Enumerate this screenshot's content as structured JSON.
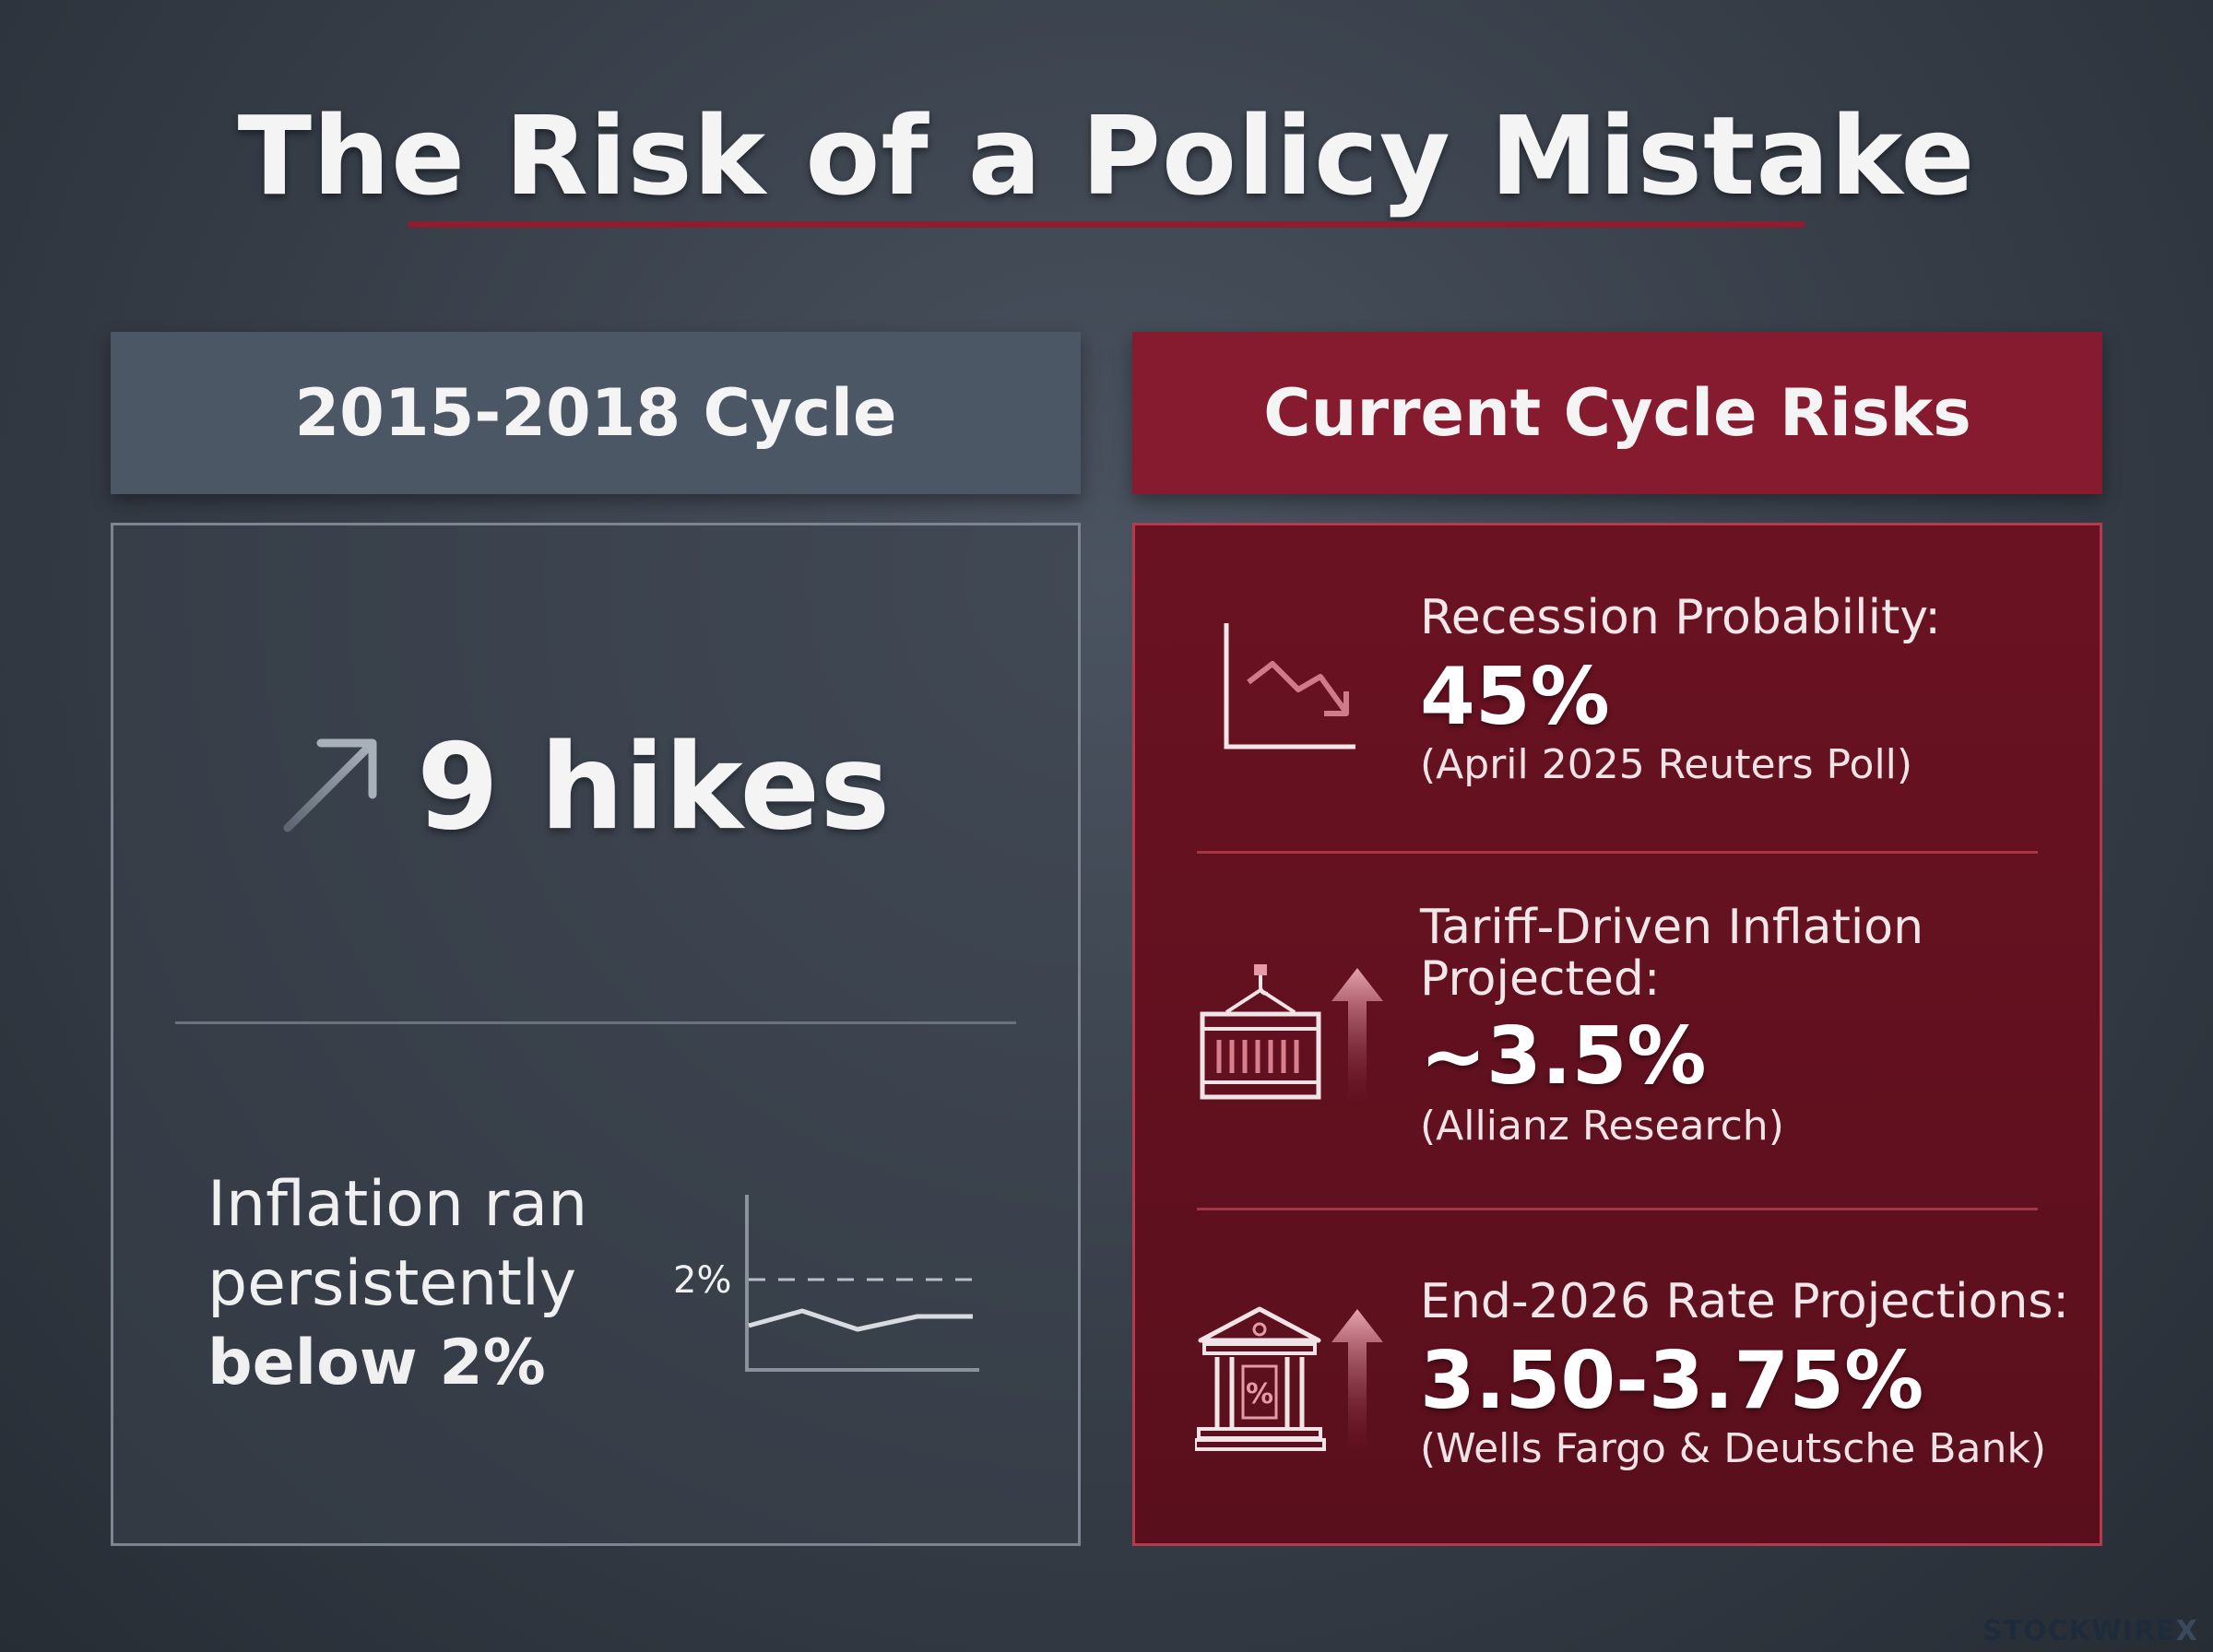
{
  "title": "The Risk of a Policy Mistake",
  "left": {
    "header": "2015-2018 Cycle",
    "hikes": "9 hikes",
    "inflation_line1": "Inflation ran",
    "inflation_line2": "persistently",
    "inflation_line3": "below 2%",
    "chart_label": "2%"
  },
  "right": {
    "header": "Current Cycle Risks",
    "rows": [
      {
        "label": "Recession Probability:",
        "value": "45%",
        "source": "(April 2025 Reuters Poll)",
        "icon": "chart-trend-down-icon"
      },
      {
        "label_line1": "Tariff-Driven Inflation",
        "label_line2": "Projected:",
        "value": "~3.5%",
        "source": "(Allianz Research)",
        "icon": "shipping-container-arrow-up-icon"
      },
      {
        "label": "End-2026 Rate Projections:",
        "value": "3.50-3.75%",
        "source": "(Wells Fargo & Deutsche Bank)",
        "icon": "bank-percent-arrow-up-icon"
      }
    ]
  },
  "brand": {
    "main": "STOCKWIRE",
    "suffix": "X"
  },
  "colors": {
    "accent_red": "#861a2f",
    "slate_header": "#4b5765",
    "background": "#363d47"
  }
}
